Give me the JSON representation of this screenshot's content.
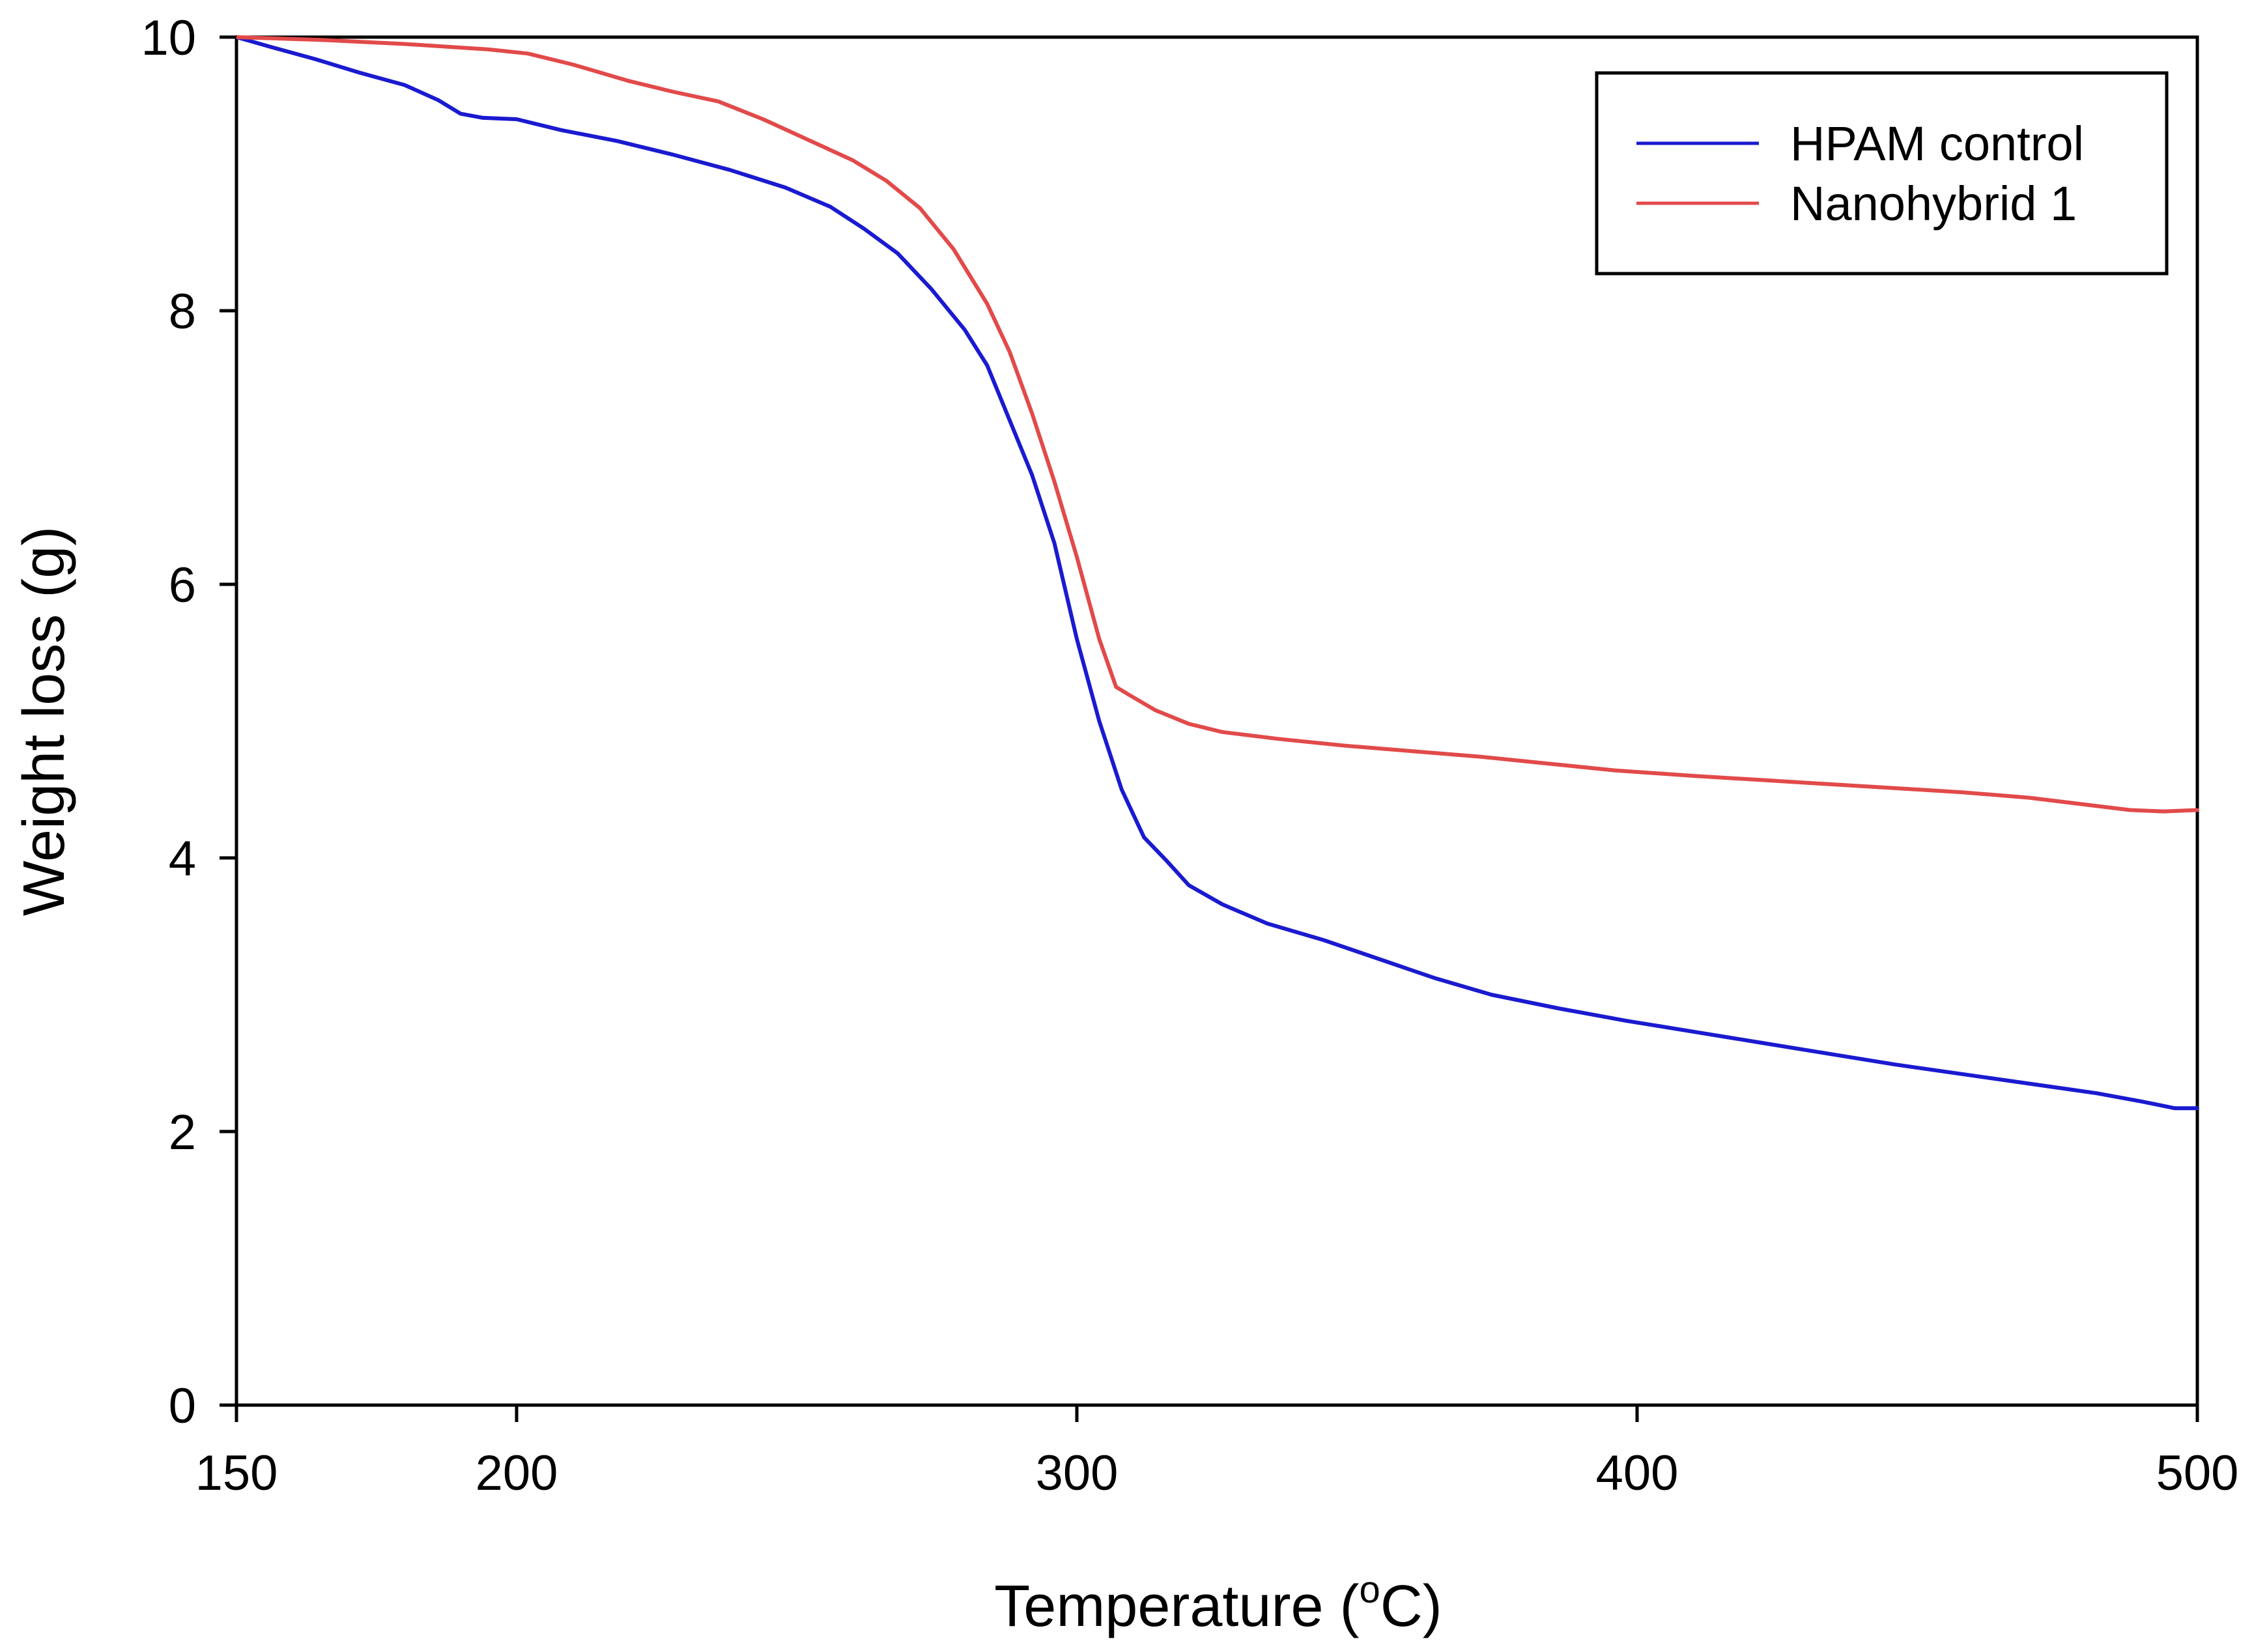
{
  "chart_data": {
    "type": "line",
    "title": "",
    "xlabel": "Temperature (",
    "xlabel_superscript": "o",
    "xlabel_suffix": "C)",
    "ylabel": "Weight loss (g)",
    "xlim": [
      150,
      500
    ],
    "ylim": [
      0,
      10
    ],
    "xticks": [
      150,
      200,
      300,
      400,
      500
    ],
    "yticks": [
      0,
      2,
      4,
      6,
      8,
      10
    ],
    "grid": false,
    "legend_position": "top-right",
    "series": [
      {
        "name": "HPAM control",
        "color": "#1a1ad0",
        "points": [
          [
            150,
            10.0
          ],
          [
            156,
            9.93
          ],
          [
            164,
            9.84
          ],
          [
            172,
            9.74
          ],
          [
            180,
            9.65
          ],
          [
            186,
            9.54
          ],
          [
            190,
            9.44
          ],
          [
            194,
            9.41
          ],
          [
            200,
            9.4
          ],
          [
            208,
            9.32
          ],
          [
            218,
            9.24
          ],
          [
            228,
            9.14
          ],
          [
            238,
            9.03
          ],
          [
            248,
            8.9
          ],
          [
            256,
            8.76
          ],
          [
            262,
            8.6
          ],
          [
            268,
            8.42
          ],
          [
            274,
            8.16
          ],
          [
            280,
            7.86
          ],
          [
            284,
            7.6
          ],
          [
            288,
            7.2
          ],
          [
            292,
            6.8
          ],
          [
            296,
            6.3
          ],
          [
            300,
            5.6
          ],
          [
            304,
            5.0
          ],
          [
            308,
            4.5
          ],
          [
            312,
            4.15
          ],
          [
            316,
            3.98
          ],
          [
            320,
            3.8
          ],
          [
            326,
            3.66
          ],
          [
            334,
            3.52
          ],
          [
            344,
            3.4
          ],
          [
            354,
            3.26
          ],
          [
            364,
            3.12
          ],
          [
            374,
            3.0
          ],
          [
            386,
            2.9
          ],
          [
            398,
            2.81
          ],
          [
            410,
            2.73
          ],
          [
            422,
            2.65
          ],
          [
            434,
            2.57
          ],
          [
            446,
            2.49
          ],
          [
            458,
            2.42
          ],
          [
            470,
            2.35
          ],
          [
            482,
            2.28
          ],
          [
            490,
            2.22
          ],
          [
            496,
            2.17
          ],
          [
            500,
            2.17
          ]
        ]
      },
      {
        "name": "Nanohybrid 1",
        "color": "#e24a4a",
        "points": [
          [
            150,
            10.0
          ],
          [
            165,
            9.98
          ],
          [
            180,
            9.95
          ],
          [
            195,
            9.91
          ],
          [
            202,
            9.88
          ],
          [
            210,
            9.8
          ],
          [
            220,
            9.68
          ],
          [
            228,
            9.6
          ],
          [
            236,
            9.53
          ],
          [
            244,
            9.4
          ],
          [
            252,
            9.25
          ],
          [
            260,
            9.1
          ],
          [
            266,
            8.95
          ],
          [
            272,
            8.75
          ],
          [
            278,
            8.45
          ],
          [
            284,
            8.05
          ],
          [
            288,
            7.7
          ],
          [
            292,
            7.25
          ],
          [
            296,
            6.75
          ],
          [
            300,
            6.2
          ],
          [
            304,
            5.6
          ],
          [
            307,
            5.25
          ],
          [
            309,
            5.2
          ],
          [
            314,
            5.08
          ],
          [
            320,
            4.98
          ],
          [
            326,
            4.92
          ],
          [
            336,
            4.87
          ],
          [
            348,
            4.82
          ],
          [
            360,
            4.78
          ],
          [
            372,
            4.74
          ],
          [
            384,
            4.69
          ],
          [
            396,
            4.64
          ],
          [
            410,
            4.6
          ],
          [
            422,
            4.57
          ],
          [
            434,
            4.54
          ],
          [
            446,
            4.51
          ],
          [
            458,
            4.48
          ],
          [
            470,
            4.44
          ],
          [
            480,
            4.39
          ],
          [
            488,
            4.35
          ],
          [
            494,
            4.34
          ],
          [
            500,
            4.35
          ]
        ]
      }
    ]
  }
}
